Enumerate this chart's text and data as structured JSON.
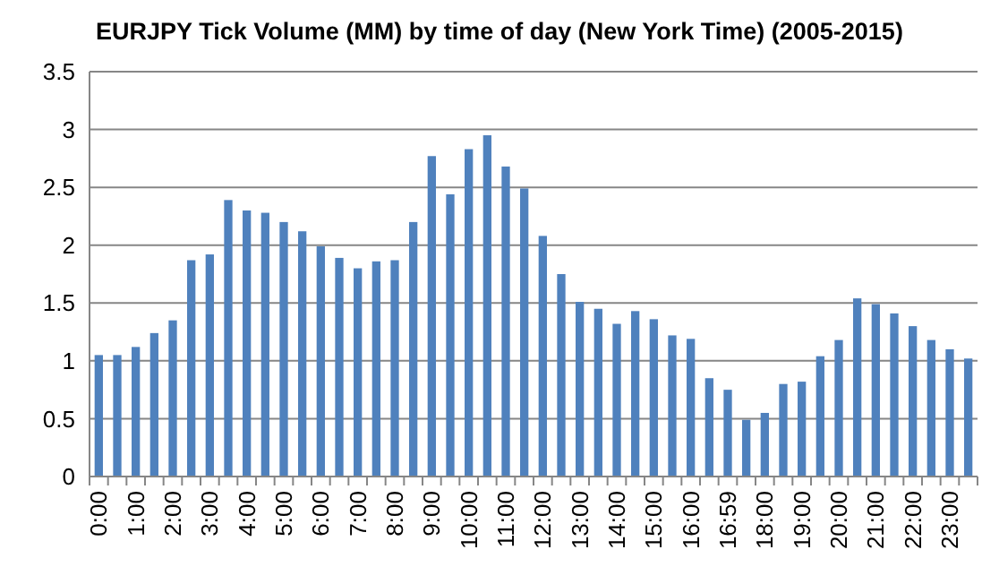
{
  "chart_data": {
    "type": "bar",
    "title": "EURJPY Tick Volume (MM) by time of day (New York Time) (2005-2015)",
    "categories": [
      "0:00",
      null,
      "1:00",
      null,
      "2:00",
      null,
      "3:00",
      null,
      "4:00",
      null,
      "5:00",
      null,
      "6:00",
      null,
      "7:00",
      null,
      "8:00",
      null,
      "9:00",
      null,
      "10:00",
      null,
      "11:00",
      null,
      "12:00",
      null,
      "13:00",
      null,
      "14:00",
      null,
      "15:00",
      null,
      "16:00",
      null,
      "16:59",
      null,
      "18:00",
      null,
      "19:00",
      null,
      "20:00",
      null,
      "21:00",
      null,
      "22:00",
      null,
      "23:00",
      null
    ],
    "values": [
      1.05,
      1.05,
      1.12,
      1.24,
      1.35,
      1.87,
      1.92,
      2.39,
      2.3,
      2.28,
      2.2,
      2.12,
      1.99,
      1.89,
      1.8,
      1.86,
      1.87,
      2.2,
      2.77,
      2.44,
      2.83,
      2.95,
      2.68,
      2.49,
      2.08,
      1.75,
      1.51,
      1.45,
      1.32,
      1.43,
      1.36,
      1.22,
      1.19,
      0.85,
      0.75,
      0.49,
      0.55,
      0.8,
      0.82,
      1.04,
      1.18,
      1.54,
      1.49,
      1.41,
      1.3,
      1.18,
      1.1,
      1.02
    ],
    "color": "#4f81bd",
    "ylim": [
      0,
      3.5
    ],
    "yticks": [
      0,
      0.5,
      1,
      1.5,
      2,
      2.5,
      3,
      3.5
    ],
    "grid": "y"
  }
}
